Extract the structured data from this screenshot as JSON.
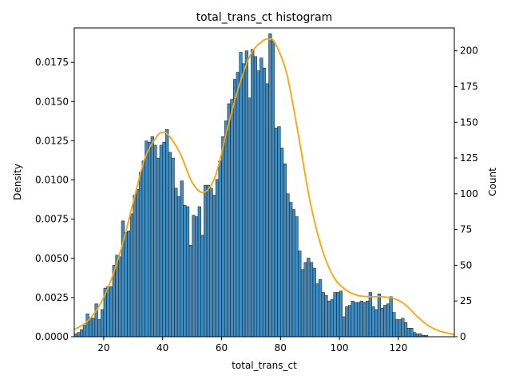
{
  "chart_data": {
    "type": "bar",
    "title": "total_trans_ct histogram",
    "xlabel": "total_trans_ct",
    "ylabel_left": "Density",
    "ylabel_right": "Count",
    "xlim": [
      10,
      139
    ],
    "ylim_density": [
      0,
      0.0197
    ],
    "ylim_count": [
      0,
      216
    ],
    "x_ticks": [
      20,
      40,
      60,
      80,
      100,
      120
    ],
    "y_ticks_density": [
      "0.0000",
      "0.0025",
      "0.0050",
      "0.0075",
      "0.0100",
      "0.0125",
      "0.0150",
      "0.0175"
    ],
    "y_ticks_count": [
      0,
      25,
      50,
      75,
      100,
      125,
      150,
      175,
      200
    ],
    "bin_start": 10,
    "bin_width": 1,
    "counts": [
      2,
      3,
      5,
      8,
      16,
      13,
      13,
      23,
      12,
      19,
      34,
      35,
      35,
      50,
      57,
      56,
      81,
      73,
      74,
      86,
      99,
      103,
      115,
      123,
      137,
      136,
      140,
      134,
      125,
      134,
      136,
      145,
      129,
      125,
      104,
      98,
      109,
      92,
      91,
      64,
      85,
      84,
      91,
      71,
      106,
      106,
      104,
      99,
      110,
      123,
      140,
      151,
      163,
      166,
      180,
      185,
      199,
      191,
      200,
      167,
      201,
      196,
      186,
      195,
      188,
      177,
      212,
      207,
      146,
      147,
      132,
      121,
      100,
      94,
      89,
      84,
      60,
      47,
      52,
      55,
      52,
      48,
      37,
      40,
      31,
      29,
      25,
      26,
      31,
      31,
      32,
      14,
      21,
      22,
      25,
      24,
      24,
      25,
      24,
      25,
      31,
      21,
      19,
      30,
      20,
      22,
      23,
      28,
      17,
      12,
      12,
      13,
      10,
      6,
      6,
      3,
      2,
      2,
      1,
      1
    ],
    "kde_points": [
      [
        10,
        5
      ],
      [
        14,
        10
      ],
      [
        18,
        20
      ],
      [
        22,
        37
      ],
      [
        26,
        62
      ],
      [
        30,
        94
      ],
      [
        34,
        125
      ],
      [
        38,
        140
      ],
      [
        40,
        143
      ],
      [
        42,
        141
      ],
      [
        46,
        128
      ],
      [
        50,
        108
      ],
      [
        54,
        101
      ],
      [
        58,
        113
      ],
      [
        62,
        146
      ],
      [
        66,
        176
      ],
      [
        70,
        198
      ],
      [
        74,
        207
      ],
      [
        76,
        208
      ],
      [
        78,
        206
      ],
      [
        82,
        185
      ],
      [
        86,
        142
      ],
      [
        90,
        95
      ],
      [
        94,
        62
      ],
      [
        98,
        42
      ],
      [
        102,
        33
      ],
      [
        106,
        29
      ],
      [
        110,
        28
      ],
      [
        114,
        28
      ],
      [
        118,
        27
      ],
      [
        122,
        23
      ],
      [
        126,
        15
      ],
      [
        130,
        8
      ],
      [
        134,
        4
      ],
      [
        138,
        2
      ],
      [
        139,
        1
      ]
    ],
    "bar_color": "#1f77b4",
    "kde_color": "#ffa500"
  }
}
